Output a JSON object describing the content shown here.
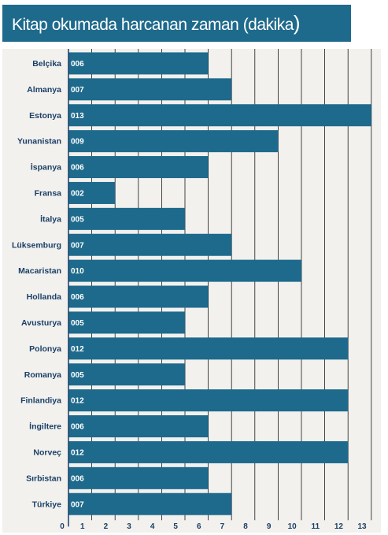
{
  "chart_data": {
    "type": "bar",
    "orientation": "horizontal",
    "title": "Kitap okumada harcanan zaman (dakika)",
    "categories": [
      "Belçika",
      "Almanya",
      "Estonya",
      "Yunanistan",
      "İspanya",
      "Fransa",
      "İtalya",
      "Lüksemburg",
      "Macaristan",
      "Hollanda",
      "Avusturya",
      "Polonya",
      "Romanya",
      "Finlandiya",
      "İngiltere",
      "Norveç",
      "Sırbistan",
      "Türkiye"
    ],
    "values": [
      6,
      7,
      13,
      9,
      6,
      2,
      5,
      7,
      10,
      6,
      5,
      12,
      5,
      12,
      6,
      12,
      6,
      7
    ],
    "value_labels": [
      "006",
      "007",
      "013",
      "009",
      "006",
      "002",
      "005",
      "007",
      "010",
      "006",
      "005",
      "012",
      "005",
      "012",
      "006",
      "012",
      "006",
      "007"
    ],
    "x_ticks": [
      "0",
      "1",
      "2",
      "3",
      "4",
      "5",
      "6",
      "7",
      "8",
      "9",
      "10",
      "11",
      "12",
      "13"
    ],
    "xlim": [
      0,
      13
    ],
    "grid": true,
    "colors": {
      "bar": "#1e6a8c",
      "title_bg": "#1e6a8c",
      "plot_bg": "#f2f1ee",
      "grid": "#1a1a1a",
      "label": "#1a3f66"
    }
  }
}
